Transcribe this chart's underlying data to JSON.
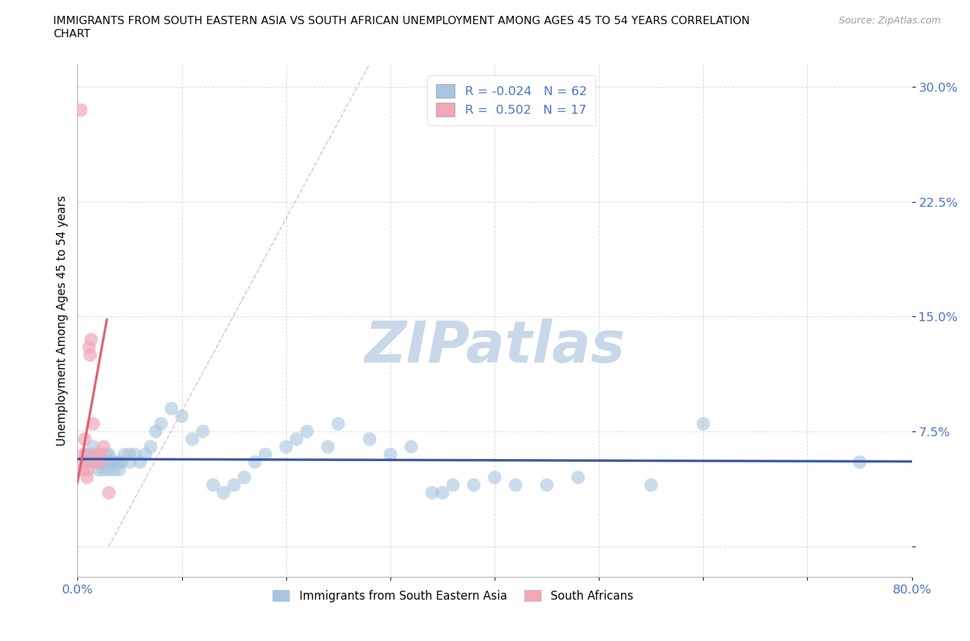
{
  "title_line1": "IMMIGRANTS FROM SOUTH EASTERN ASIA VS SOUTH AFRICAN UNEMPLOYMENT AMONG AGES 45 TO 54 YEARS CORRELATION",
  "title_line2": "CHART",
  "source_text": "Source: ZipAtlas.com",
  "ylabel": "Unemployment Among Ages 45 to 54 years",
  "xlim": [
    0.0,
    0.8
  ],
  "ylim": [
    -0.02,
    0.315
  ],
  "x_ticks": [
    0.0,
    0.1,
    0.2,
    0.3,
    0.4,
    0.5,
    0.6,
    0.7,
    0.8
  ],
  "x_tick_labels": [
    "0.0%",
    "",
    "",
    "",
    "",
    "",
    "",
    "",
    "80.0%"
  ],
  "y_ticks": [
    0.0,
    0.075,
    0.15,
    0.225,
    0.3
  ],
  "y_tick_labels": [
    "",
    "7.5%",
    "15.0%",
    "22.5%",
    "30.0%"
  ],
  "grid_color": "#cccccc",
  "background_color": "#ffffff",
  "watermark": "ZIPatlas",
  "watermark_color": "#c8d8e8",
  "series1_color": "#a8c4e0",
  "series2_color": "#f0a8b8",
  "line1_color": "#3355aa",
  "line2_color": "#e06070",
  "ref_line_color": "#e0b0b8",
  "legend_label1": "R = -0.024   N = 62",
  "legend_label2": "R =  0.502   N = 17",
  "r1": -0.024,
  "n1": 62,
  "r2": 0.502,
  "n2": 17,
  "blue_x": [
    0.005,
    0.008,
    0.01,
    0.012,
    0.015,
    0.015,
    0.018,
    0.02,
    0.02,
    0.02,
    0.022,
    0.025,
    0.025,
    0.028,
    0.03,
    0.03,
    0.03,
    0.032,
    0.035,
    0.035,
    0.038,
    0.04,
    0.04,
    0.042,
    0.045,
    0.05,
    0.05,
    0.055,
    0.06,
    0.065,
    0.07,
    0.075,
    0.08,
    0.09,
    0.1,
    0.11,
    0.12,
    0.13,
    0.14,
    0.15,
    0.16,
    0.17,
    0.18,
    0.2,
    0.21,
    0.22,
    0.24,
    0.25,
    0.28,
    0.3,
    0.32,
    0.34,
    0.35,
    0.36,
    0.38,
    0.4,
    0.42,
    0.45,
    0.48,
    0.55,
    0.6,
    0.75
  ],
  "blue_y": [
    0.055,
    0.06,
    0.055,
    0.06,
    0.055,
    0.065,
    0.055,
    0.05,
    0.055,
    0.06,
    0.055,
    0.05,
    0.055,
    0.06,
    0.05,
    0.055,
    0.06,
    0.055,
    0.05,
    0.055,
    0.055,
    0.05,
    0.055,
    0.055,
    0.06,
    0.055,
    0.06,
    0.06,
    0.055,
    0.06,
    0.065,
    0.075,
    0.08,
    0.09,
    0.085,
    0.07,
    0.075,
    0.04,
    0.035,
    0.04,
    0.045,
    0.055,
    0.06,
    0.065,
    0.07,
    0.075,
    0.065,
    0.08,
    0.07,
    0.06,
    0.065,
    0.035,
    0.035,
    0.04,
    0.04,
    0.045,
    0.04,
    0.04,
    0.045,
    0.04,
    0.08,
    0.055
  ],
  "pink_x": [
    0.003,
    0.005,
    0.006,
    0.007,
    0.008,
    0.009,
    0.01,
    0.011,
    0.012,
    0.013,
    0.015,
    0.016,
    0.018,
    0.02,
    0.022,
    0.025,
    0.03
  ],
  "pink_y": [
    0.285,
    0.05,
    0.06,
    0.07,
    0.055,
    0.045,
    0.05,
    0.13,
    0.125,
    0.135,
    0.08,
    0.06,
    0.055,
    0.055,
    0.06,
    0.065,
    0.035
  ],
  "blue_line_y_intercept": 0.057,
  "blue_line_slope": -0.002,
  "pink_line_x_start": 0.0,
  "pink_line_x_end": 0.028,
  "pink_line_y_start": 0.042,
  "pink_line_y_end": 0.148
}
